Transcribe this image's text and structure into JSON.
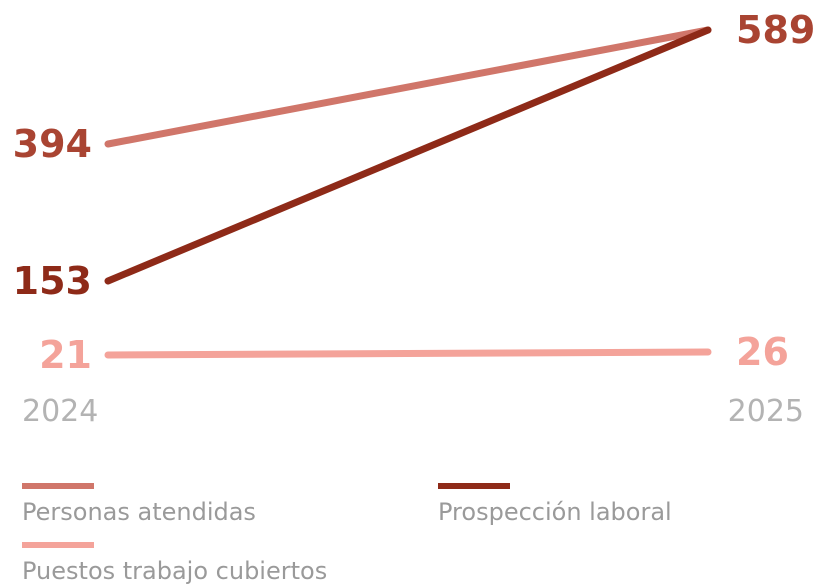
{
  "chart_data": {
    "type": "line",
    "x": [
      "2024",
      "2025"
    ],
    "series": [
      {
        "name": "Personas atendidas",
        "values": [
          394,
          589
        ],
        "color": "#d0766a"
      },
      {
        "name": "Prospección laboral",
        "values": [
          153,
          589
        ],
        "color": "#8e2a18"
      },
      {
        "name": "Puestos trabajo cubiertos",
        "values": [
          21,
          26
        ],
        "color": "#f4a39a"
      }
    ],
    "value_label_color": "#a94432",
    "year_label_color": "#b3b3b3",
    "legend_text_color": "#9a9a9a",
    "legend_placement": "bottom",
    "grid": false
  }
}
